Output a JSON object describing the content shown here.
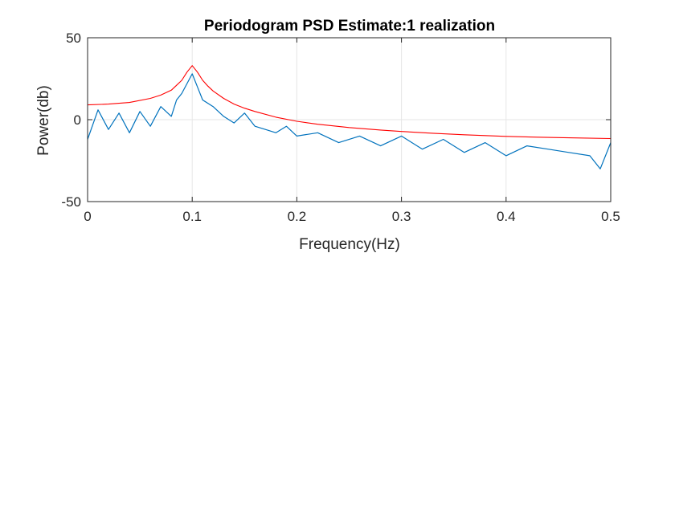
{
  "chart_data": {
    "type": "line",
    "title": "Periodogram PSD Estimate:1 realization",
    "xlabel": "Frequency(Hz)",
    "ylabel": "Power(db)",
    "xlim": [
      0,
      0.5
    ],
    "ylim": [
      -50,
      50
    ],
    "xticks": [
      0,
      0.1,
      0.2,
      0.3,
      0.4,
      0.5
    ],
    "xtick_labels": [
      "0",
      "0.1",
      "0.2",
      "0.3",
      "0.4",
      "0.5"
    ],
    "yticks": [
      -50,
      0,
      50
    ],
    "ytick_labels": [
      "-50",
      "0",
      "50"
    ],
    "grid": true,
    "legend": "none",
    "series": [
      {
        "color": "#0072BD",
        "x": [
          0,
          0.01,
          0.02,
          0.03,
          0.04,
          0.05,
          0.06,
          0.07,
          0.08,
          0.085,
          0.09,
          0.095,
          0.1,
          0.105,
          0.11,
          0.12,
          0.13,
          0.14,
          0.15,
          0.16,
          0.17,
          0.18,
          0.19,
          0.2,
          0.22,
          0.24,
          0.26,
          0.28,
          0.3,
          0.32,
          0.34,
          0.36,
          0.38,
          0.4,
          0.42,
          0.44,
          0.46,
          0.48,
          0.49,
          0.5
        ],
        "y": [
          -12,
          6,
          -6,
          4,
          -8,
          5,
          -4,
          8,
          2,
          12,
          16,
          22,
          28,
          20,
          12,
          8,
          2,
          -2,
          4,
          -4,
          -6,
          -8,
          -4,
          -10,
          -8,
          -14,
          -10,
          -16,
          -10,
          -18,
          -12,
          -20,
          -14,
          -22,
          -16,
          -18,
          -20,
          -22,
          -30,
          -14
        ]
      },
      {
        "color": "#FF0000",
        "x": [
          0,
          0.02,
          0.04,
          0.06,
          0.07,
          0.08,
          0.085,
          0.09,
          0.095,
          0.1,
          0.105,
          0.11,
          0.115,
          0.12,
          0.13,
          0.14,
          0.15,
          0.16,
          0.18,
          0.2,
          0.22,
          0.25,
          0.28,
          0.3,
          0.33,
          0.36,
          0.4,
          0.43,
          0.46,
          0.5
        ],
        "y": [
          9,
          9.5,
          10.5,
          13,
          15,
          18,
          21,
          24,
          29,
          33,
          29,
          24,
          20.5,
          17.5,
          13,
          9.5,
          7,
          5,
          1.5,
          -1,
          -2.8,
          -4.8,
          -6.3,
          -7.2,
          -8.3,
          -9.2,
          -10.2,
          -10.7,
          -11.1,
          -11.5
        ]
      }
    ]
  }
}
